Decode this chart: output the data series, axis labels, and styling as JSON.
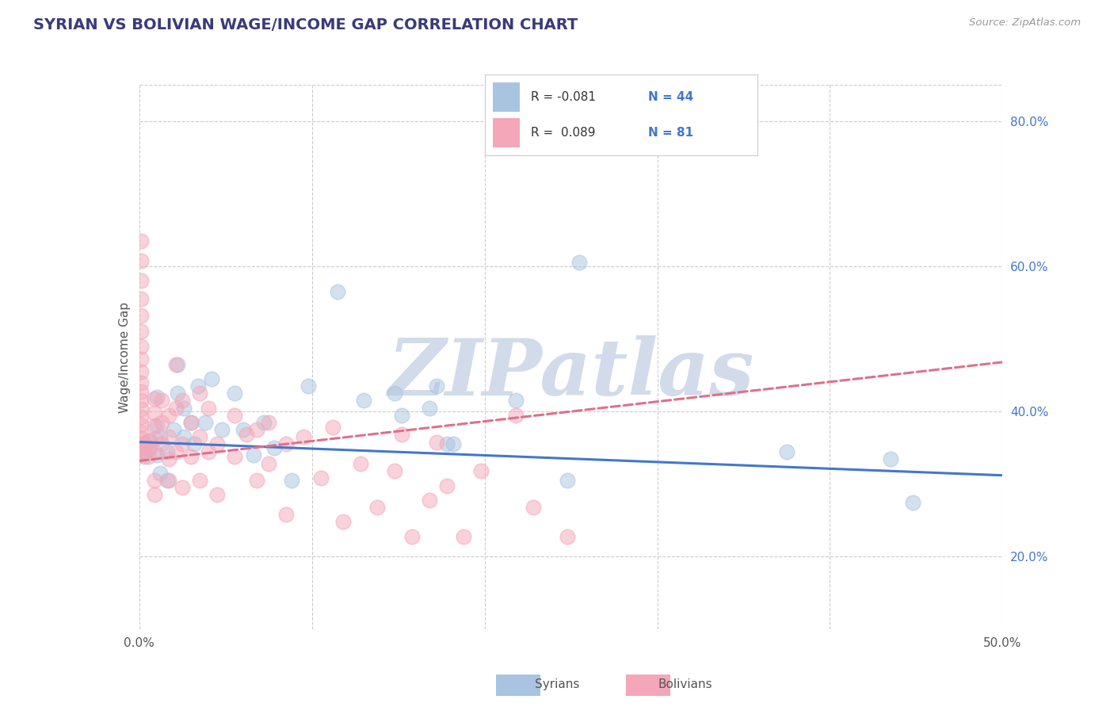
{
  "title": "SYRIAN VS BOLIVIAN WAGE/INCOME GAP CORRELATION CHART",
  "source": "Source: ZipAtlas.com",
  "ylabel": "Wage/Income Gap",
  "xlim": [
    0.0,
    0.5
  ],
  "ylim": [
    0.1,
    0.85
  ],
  "xtick_positions": [
    0.0,
    0.1,
    0.2,
    0.3,
    0.4,
    0.5
  ],
  "xtick_labels": [
    "0.0%",
    "",
    "",
    "",
    "",
    "50.0%"
  ],
  "yticks_right": [
    0.2,
    0.4,
    0.6,
    0.8
  ],
  "color_syrian": "#a8c4e0",
  "color_bolivian": "#f4a7b9",
  "color_syrian_line": "#4477cc",
  "color_bolivian_line": "#e0708a",
  "watermark": "ZIPatlas",
  "watermark_color": "#ccd8e8",
  "background_color": "#ffffff",
  "grid_color": "#cccccc",
  "title_color": "#3a3a7a",
  "axis_label_color": "#555555",
  "right_axis_color": "#4477cc",
  "syrian_scatter": [
    [
      0.003,
      0.355
    ],
    [
      0.003,
      0.345
    ],
    [
      0.003,
      0.338
    ],
    [
      0.006,
      0.36
    ],
    [
      0.006,
      0.35
    ],
    [
      0.01,
      0.34
    ],
    [
      0.01,
      0.38
    ],
    [
      0.01,
      0.42
    ],
    [
      0.012,
      0.315
    ],
    [
      0.012,
      0.365
    ],
    [
      0.016,
      0.305
    ],
    [
      0.016,
      0.345
    ],
    [
      0.02,
      0.375
    ],
    [
      0.022,
      0.425
    ],
    [
      0.022,
      0.465
    ],
    [
      0.026,
      0.365
    ],
    [
      0.026,
      0.405
    ],
    [
      0.03,
      0.385
    ],
    [
      0.032,
      0.355
    ],
    [
      0.034,
      0.435
    ],
    [
      0.038,
      0.385
    ],
    [
      0.042,
      0.445
    ],
    [
      0.048,
      0.375
    ],
    [
      0.055,
      0.425
    ],
    [
      0.06,
      0.375
    ],
    [
      0.066,
      0.34
    ],
    [
      0.072,
      0.385
    ],
    [
      0.078,
      0.35
    ],
    [
      0.088,
      0.305
    ],
    [
      0.098,
      0.435
    ],
    [
      0.115,
      0.565
    ],
    [
      0.13,
      0.415
    ],
    [
      0.148,
      0.425
    ],
    [
      0.152,
      0.395
    ],
    [
      0.168,
      0.405
    ],
    [
      0.172,
      0.435
    ],
    [
      0.178,
      0.355
    ],
    [
      0.182,
      0.355
    ],
    [
      0.218,
      0.415
    ],
    [
      0.248,
      0.305
    ],
    [
      0.255,
      0.605
    ],
    [
      0.375,
      0.345
    ],
    [
      0.435,
      0.335
    ],
    [
      0.448,
      0.275
    ]
  ],
  "bolivian_scatter": [
    [
      0.001,
      0.34
    ],
    [
      0.001,
      0.348
    ],
    [
      0.001,
      0.355
    ],
    [
      0.001,
      0.363
    ],
    [
      0.001,
      0.372
    ],
    [
      0.001,
      0.382
    ],
    [
      0.001,
      0.392
    ],
    [
      0.001,
      0.403
    ],
    [
      0.001,
      0.415
    ],
    [
      0.001,
      0.427
    ],
    [
      0.001,
      0.44
    ],
    [
      0.001,
      0.455
    ],
    [
      0.001,
      0.472
    ],
    [
      0.001,
      0.49
    ],
    [
      0.001,
      0.51
    ],
    [
      0.001,
      0.532
    ],
    [
      0.001,
      0.555
    ],
    [
      0.001,
      0.58
    ],
    [
      0.001,
      0.608
    ],
    [
      0.001,
      0.635
    ],
    [
      0.005,
      0.338
    ],
    [
      0.005,
      0.348
    ],
    [
      0.005,
      0.36
    ],
    [
      0.009,
      0.345
    ],
    [
      0.009,
      0.363
    ],
    [
      0.009,
      0.38
    ],
    [
      0.009,
      0.398
    ],
    [
      0.009,
      0.418
    ],
    [
      0.009,
      0.305
    ],
    [
      0.009,
      0.285
    ],
    [
      0.013,
      0.355
    ],
    [
      0.013,
      0.385
    ],
    [
      0.013,
      0.415
    ],
    [
      0.017,
      0.305
    ],
    [
      0.017,
      0.335
    ],
    [
      0.017,
      0.365
    ],
    [
      0.017,
      0.395
    ],
    [
      0.021,
      0.345
    ],
    [
      0.021,
      0.405
    ],
    [
      0.021,
      0.465
    ],
    [
      0.025,
      0.295
    ],
    [
      0.025,
      0.355
    ],
    [
      0.025,
      0.415
    ],
    [
      0.03,
      0.338
    ],
    [
      0.03,
      0.385
    ],
    [
      0.035,
      0.305
    ],
    [
      0.035,
      0.365
    ],
    [
      0.035,
      0.425
    ],
    [
      0.04,
      0.345
    ],
    [
      0.04,
      0.405
    ],
    [
      0.045,
      0.285
    ],
    [
      0.045,
      0.355
    ],
    [
      0.055,
      0.338
    ],
    [
      0.055,
      0.395
    ],
    [
      0.062,
      0.368
    ],
    [
      0.068,
      0.305
    ],
    [
      0.068,
      0.375
    ],
    [
      0.075,
      0.328
    ],
    [
      0.075,
      0.385
    ],
    [
      0.085,
      0.355
    ],
    [
      0.085,
      0.258
    ],
    [
      0.095,
      0.365
    ],
    [
      0.105,
      0.308
    ],
    [
      0.112,
      0.378
    ],
    [
      0.118,
      0.248
    ],
    [
      0.128,
      0.328
    ],
    [
      0.138,
      0.268
    ],
    [
      0.148,
      0.318
    ],
    [
      0.152,
      0.368
    ],
    [
      0.158,
      0.228
    ],
    [
      0.168,
      0.278
    ],
    [
      0.172,
      0.358
    ],
    [
      0.178,
      0.298
    ],
    [
      0.188,
      0.228
    ],
    [
      0.198,
      0.318
    ],
    [
      0.218,
      0.395
    ],
    [
      0.228,
      0.268
    ],
    [
      0.248,
      0.228
    ]
  ],
  "syrian_line": [
    0.0,
    0.5,
    0.358,
    0.312
  ],
  "bolivian_line": [
    0.0,
    0.5,
    0.332,
    0.468
  ]
}
